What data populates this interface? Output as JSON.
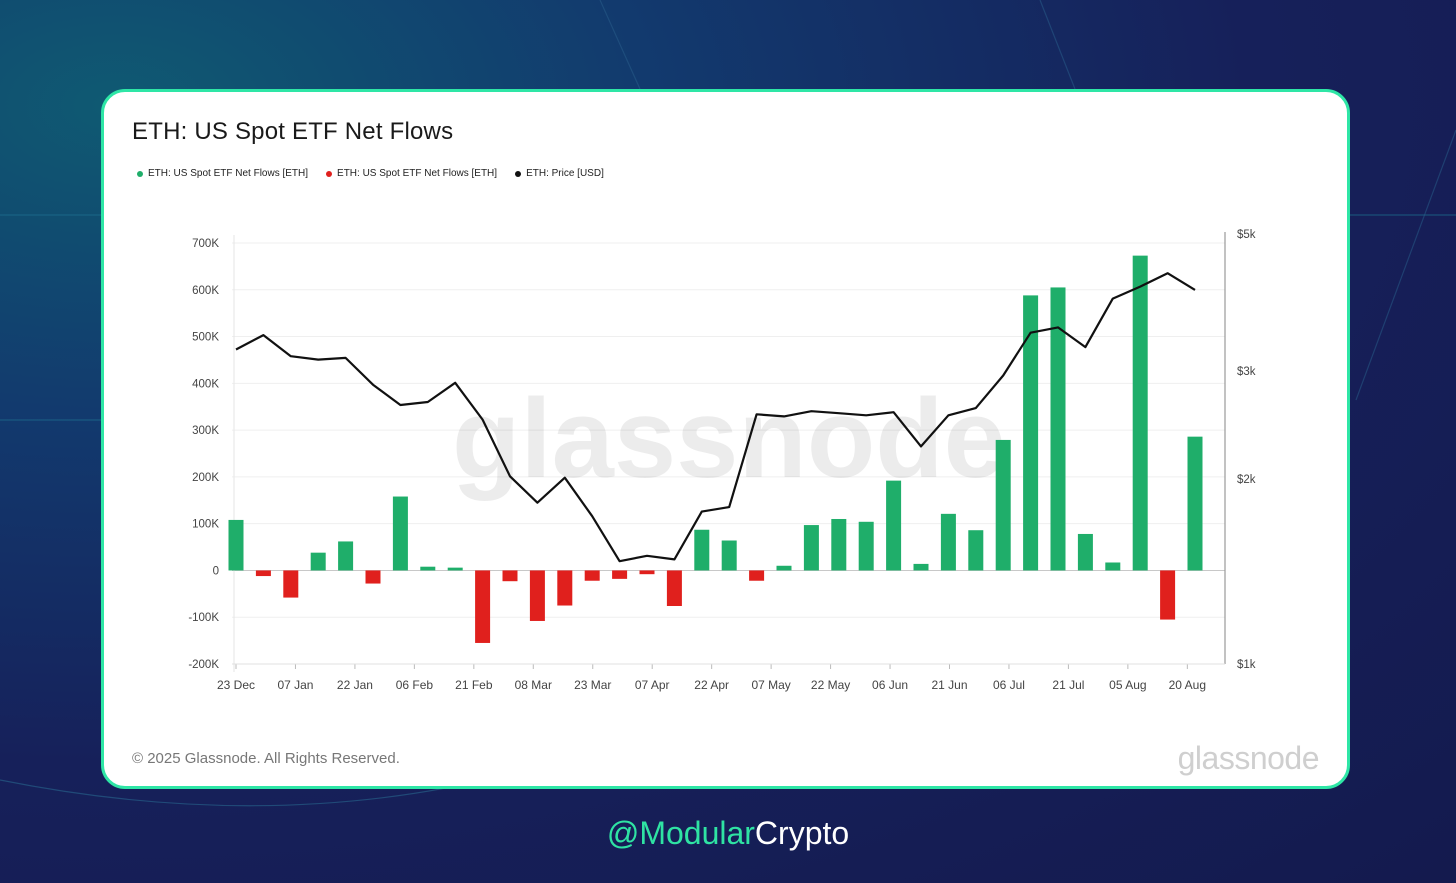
{
  "card": {
    "title": "ETH: US Spot ETF Net Flows",
    "legend": [
      {
        "label": "ETH: US Spot ETF Net Flows [ETH]",
        "color": "#1fae6a"
      },
      {
        "label": "ETH: US Spot ETF Net Flows [ETH]",
        "color": "#e0201d"
      },
      {
        "label": "ETH: Price [USD]",
        "color": "#111111"
      }
    ],
    "watermark": "glassnode",
    "copyright": "© 2025 Glassnode. All Rights Reserved.",
    "brand": "glassnode"
  },
  "handle": {
    "part1": "@Modular",
    "part2": "Crypto"
  },
  "colors": {
    "positive": "#1fae6a",
    "negative": "#e0201d",
    "price": "#111111",
    "accent": "#2ee6a6"
  },
  "chart_data": {
    "type": "bar",
    "title": "ETH: US Spot ETF Net Flows",
    "x_tick_labels": [
      "23 Dec",
      "07 Jan",
      "22 Jan",
      "06 Feb",
      "21 Feb",
      "08 Mar",
      "23 Mar",
      "07 Apr",
      "22 Apr",
      "07 May",
      "22 May",
      "06 Jun",
      "21 Jun",
      "06 Jul",
      "21 Jul",
      "05 Aug",
      "20 Aug"
    ],
    "ylim": [
      -200000,
      700000
    ],
    "y_ticks": [
      -200000,
      -100000,
      0,
      100000,
      200000,
      300000,
      400000,
      500000,
      600000,
      700000
    ],
    "y_tick_labels": [
      "-200K",
      "-100K",
      "0",
      "100K",
      "200K",
      "300K",
      "400K",
      "500K",
      "600K",
      "700K"
    ],
    "y2_ticks": [
      1000,
      2000,
      3000,
      5000
    ],
    "y2_tick_labels": [
      "$1k",
      "$2k",
      "$3k",
      "$5k"
    ],
    "y2_scale": "log",
    "grid": true,
    "legend_position": "top-left",
    "series": [
      {
        "name": "ETH: US Spot ETF Net Flows [ETH]",
        "type": "bar",
        "values": [
          108000,
          -12000,
          -58000,
          38000,
          62000,
          -28000,
          158000,
          8000,
          6000,
          -155000,
          -23000,
          -108000,
          -75000,
          -22000,
          -18000,
          -8000,
          -76000,
          87000,
          64000,
          -22000,
          10000,
          97000,
          110000,
          104000,
          192000,
          14000,
          121000,
          86000,
          279000,
          588000,
          605000,
          78000,
          17000,
          673000,
          -105000,
          286000
        ]
      },
      {
        "name": "ETH: Price [USD]",
        "type": "line",
        "axis": "right",
        "values": [
          3250,
          3430,
          3170,
          3130,
          3150,
          2850,
          2640,
          2670,
          2870,
          2500,
          2020,
          1830,
          2010,
          1740,
          1470,
          1500,
          1480,
          1770,
          1800,
          2550,
          2530,
          2580,
          2560,
          2540,
          2570,
          2260,
          2540,
          2610,
          2950,
          3460,
          3530,
          3280,
          3930,
          4110,
          4320,
          4060
        ]
      }
    ]
  }
}
